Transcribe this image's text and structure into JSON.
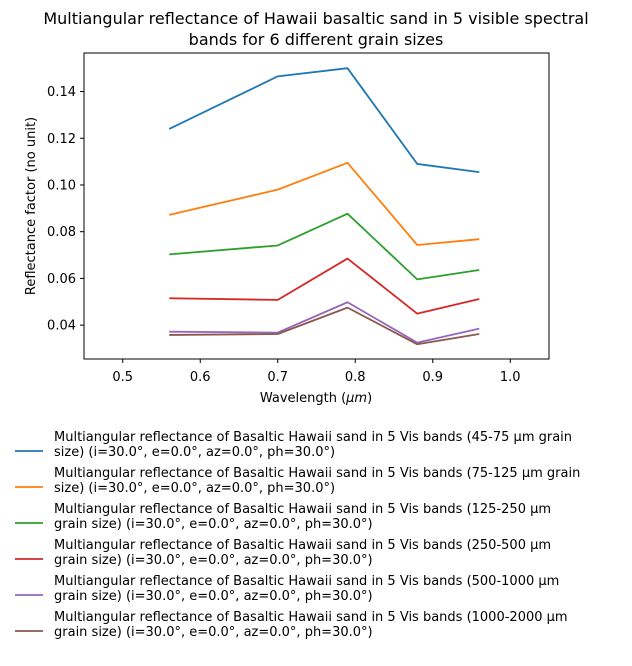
{
  "chart_data": {
    "type": "line",
    "title": "Multiangular reflectance of Hawaii basaltic sand in 5 visible spectral bands for 6 different grain sizes",
    "title_lines": [
      "Multiangular reflectance of Hawaii basaltic sand in 5 visible spectral",
      "bands for 6 different grain sizes"
    ],
    "xlabel": "Wavelength (μm)",
    "xlabel_main": "Wavelength (",
    "xlabel_unit": "μm",
    "xlabel_close": ")",
    "ylabel": "Reflectance factor (no unit)",
    "xlim": [
      0.45,
      1.05
    ],
    "ylim": [
      0.0255,
      0.1565
    ],
    "xticks": [
      0.5,
      0.6,
      0.7,
      0.8,
      0.9,
      1.0
    ],
    "xtick_labels": [
      "0.5",
      "0.6",
      "0.7",
      "0.8",
      "0.9",
      "1.0"
    ],
    "yticks": [
      0.04,
      0.06,
      0.08,
      0.1,
      0.12,
      0.14
    ],
    "ytick_labels": [
      "0.04",
      "0.06",
      "0.08",
      "0.10",
      "0.12",
      "0.14"
    ],
    "grid": false,
    "legend_placement": "below",
    "x": [
      0.56,
      0.7,
      0.79,
      0.88,
      0.96
    ],
    "series": [
      {
        "name": "Multiangular reflectance of Basaltic Hawaii sand in 5 Vis bands (45-75 µm grain size) (i=30.0°, e=0.0°, az=0.0°, ph=30.0°)",
        "legend_lines": [
          "Multiangular reflectance of Basaltic Hawaii sand in 5 Vis bands (45-75 µm grain",
          "size) (i=30.0°, e=0.0°, az=0.0°, ph=30.0°)"
        ],
        "color": "#1f77b4",
        "values": [
          0.124,
          0.1465,
          0.15,
          0.109,
          0.1055
        ]
      },
      {
        "name": "Multiangular reflectance of Basaltic Hawaii sand in 5 Vis bands (75-125 µm grain size) (i=30.0°, e=0.0°, az=0.0°, ph=30.0°)",
        "legend_lines": [
          "Multiangular reflectance of Basaltic Hawaii sand in 5 Vis bands (75-125 µm grain",
          "size) (i=30.0°, e=0.0°, az=0.0°, ph=30.0°)"
        ],
        "color": "#ff7f0e",
        "values": [
          0.0872,
          0.098,
          0.1095,
          0.0743,
          0.0768
        ]
      },
      {
        "name": "Multiangular reflectance of Basaltic Hawaii sand in 5 Vis bands (125-250 µm grain size) (i=30.0°, e=0.0°, az=0.0°, ph=30.0°)",
        "legend_lines": [
          "Multiangular reflectance of Basaltic Hawaii sand in 5 Vis bands (125-250 µm",
          "grain size) (i=30.0°, e=0.0°, az=0.0°, ph=30.0°)"
        ],
        "color": "#2ca02c",
        "values": [
          0.0703,
          0.0741,
          0.0877,
          0.0596,
          0.0636
        ]
      },
      {
        "name": "Multiangular reflectance of Basaltic Hawaii sand in 5 Vis bands (250-500 µm grain size) (i=30.0°, e=0.0°, az=0.0°, ph=30.0°)",
        "legend_lines": [
          "Multiangular reflectance of Basaltic Hawaii sand in 5 Vis bands (250-500 µm",
          "grain size) (i=30.0°, e=0.0°, az=0.0°, ph=30.0°)"
        ],
        "color": "#d62728",
        "values": [
          0.0515,
          0.0508,
          0.0685,
          0.0449,
          0.0512
        ]
      },
      {
        "name": "Multiangular reflectance of Basaltic Hawaii sand in 5 Vis bands (500-1000 µm grain size) (i=30.0°, e=0.0°, az=0.0°, ph=30.0°)",
        "legend_lines": [
          "Multiangular reflectance of Basaltic Hawaii sand in 5 Vis bands (500-1000 µm",
          "grain size) (i=30.0°, e=0.0°, az=0.0°, ph=30.0°)"
        ],
        "color": "#9467bd",
        "values": [
          0.0372,
          0.0368,
          0.0498,
          0.0325,
          0.0385
        ]
      },
      {
        "name": "Multiangular reflectance of Basaltic Hawaii sand in 5 Vis bands (1000-2000 µm grain size) (i=30.0°, e=0.0°, az=0.0°, ph=30.0°)",
        "legend_lines": [
          "Multiangular reflectance of Basaltic Hawaii sand in 5 Vis bands (1000-2000 µm",
          "grain size) (i=30.0°, e=0.0°, az=0.0°, ph=30.0°)"
        ],
        "color": "#8c564b",
        "values": [
          0.0358,
          0.0362,
          0.0475,
          0.0318,
          0.0362
        ]
      }
    ]
  }
}
